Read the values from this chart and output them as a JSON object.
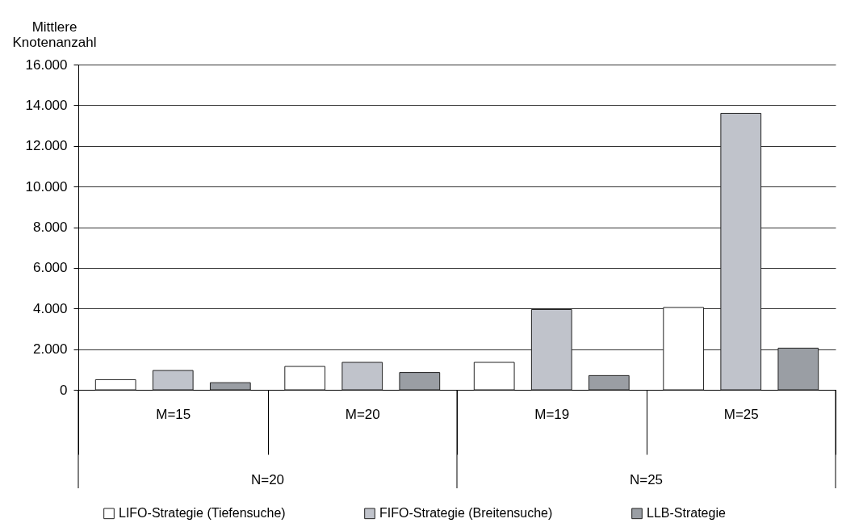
{
  "chart_data": {
    "type": "bar",
    "ylabel": "Mittlere Knotenanzahl",
    "categories": [
      "M=15",
      "M=20",
      "M=19",
      "M=25"
    ],
    "series": [
      {
        "name": "LIFO-Strategie (Tiefensuche)",
        "color": "#ffffff",
        "values": [
          500,
          1150,
          1350,
          4050
        ]
      },
      {
        "name": "FIFO-Strategie (Breitensuche)",
        "color": "#c0c3cb",
        "values": [
          950,
          1350,
          3950,
          13600
        ]
      },
      {
        "name": "LLB-Strategie",
        "color": "#9a9ea4",
        "values": [
          350,
          850,
          700,
          2050
        ]
      }
    ],
    "annotations": [
      "N=20",
      "N=25"
    ],
    "ylim": [
      0,
      16000
    ],
    "yticks": [
      {
        "value": 0,
        "label": "0"
      },
      {
        "value": 2000,
        "label": "2.000"
      },
      {
        "value": 4000,
        "label": "4.000"
      },
      {
        "value": 6000,
        "label": "6.000"
      },
      {
        "value": 8000,
        "label": "8.000"
      },
      {
        "value": 10000,
        "label": "10.000"
      },
      {
        "value": 12000,
        "label": "12.000"
      },
      {
        "value": 14000,
        "label": "14.000"
      },
      {
        "value": 16000,
        "label": "16.000"
      }
    ],
    "grid": "y",
    "legend": "bottom"
  }
}
